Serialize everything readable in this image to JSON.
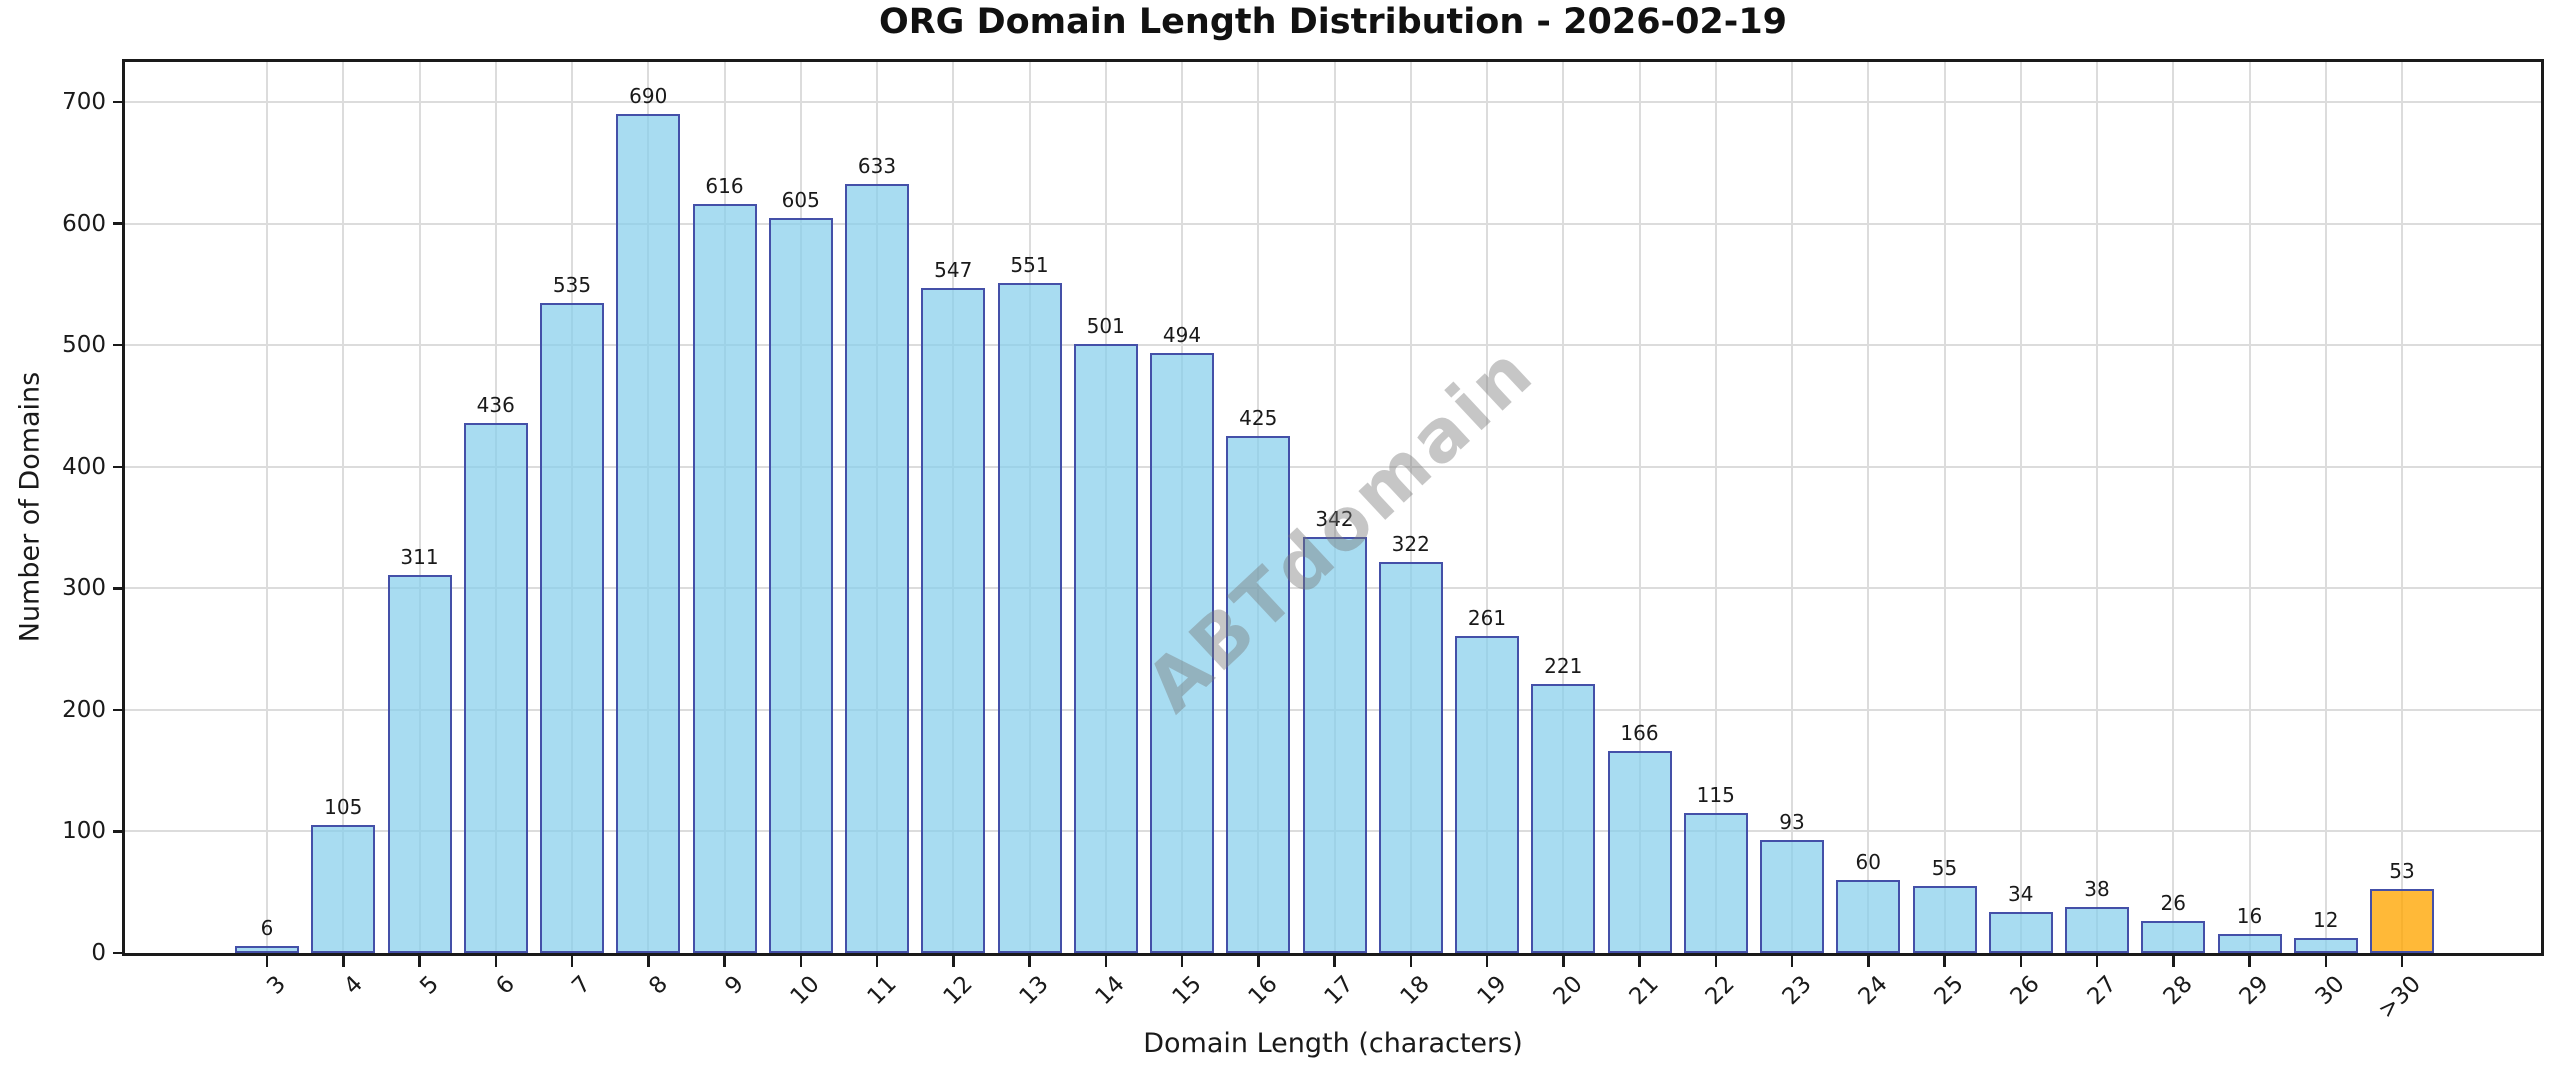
{
  "title": "ORG Domain Length Distribution - 2026-02-19",
  "watermark": "ABTdomain",
  "chart_data": {
    "type": "bar",
    "title": "ORG Domain Length Distribution - 2026-02-19",
    "xlabel": "Domain Length (characters)",
    "ylabel": "Number of Domains",
    "categories": [
      "3",
      "4",
      "5",
      "6",
      "7",
      "8",
      "9",
      "10",
      "11",
      "12",
      "13",
      "14",
      "15",
      "16",
      "17",
      "18",
      "19",
      "20",
      "21",
      "22",
      "23",
      "24",
      "25",
      "26",
      "27",
      "28",
      "29",
      "30",
      ">30"
    ],
    "values": [
      6,
      105,
      311,
      436,
      535,
      690,
      616,
      605,
      633,
      547,
      551,
      501,
      494,
      425,
      342,
      322,
      261,
      221,
      166,
      115,
      93,
      60,
      55,
      34,
      38,
      26,
      16,
      12,
      53
    ],
    "highlight_index": 28,
    "yticks": [
      0,
      100,
      200,
      300,
      400,
      500,
      600,
      700
    ],
    "ylim": [
      0,
      733
    ],
    "grid": true,
    "x_tick_rotation_deg": 45,
    "value_labels_shown": true,
    "legend": "none",
    "colors": {
      "bar_fill": "#87CEEB",
      "bar_fill_alpha": 0.72,
      "bar_edge": "#4450A8",
      "highlight_fill": "#FFA500",
      "highlight_fill_alpha": 0.78,
      "grid": "#DCDCDC",
      "axis": "#1A1A1A",
      "watermark_gray": "#787878"
    }
  }
}
